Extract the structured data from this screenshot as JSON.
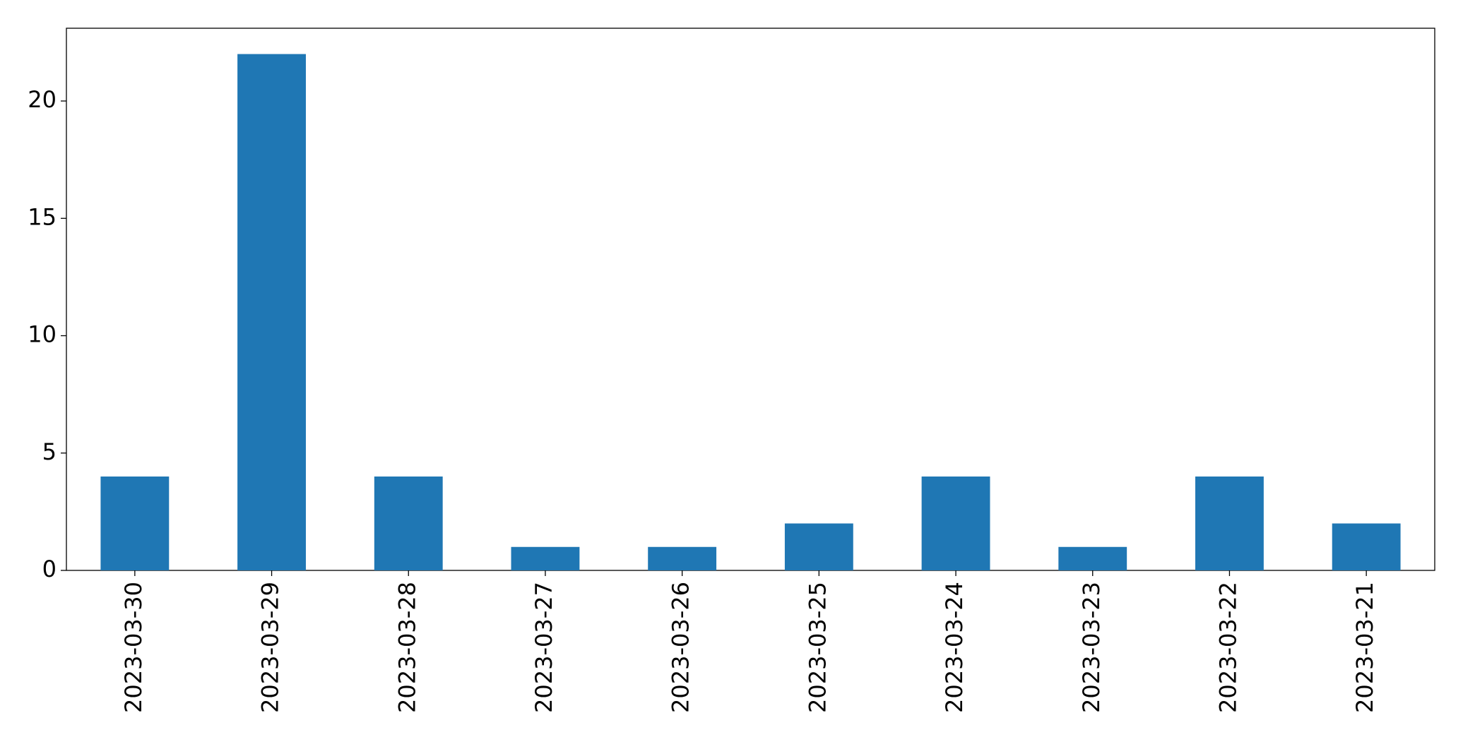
{
  "chart_data": {
    "type": "bar",
    "categories": [
      "2023-03-30",
      "2023-03-29",
      "2023-03-28",
      "2023-03-27",
      "2023-03-26",
      "2023-03-25",
      "2023-03-24",
      "2023-03-23",
      "2023-03-22",
      "2023-03-21"
    ],
    "values": [
      4,
      22,
      4,
      1,
      1,
      2,
      4,
      1,
      4,
      2
    ],
    "color": "#1f77b4",
    "ylim": [
      0,
      23.1
    ],
    "yticks": [
      0,
      5,
      10,
      15,
      20
    ],
    "grid": false
  }
}
